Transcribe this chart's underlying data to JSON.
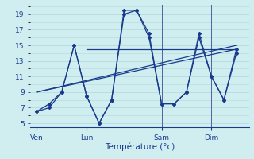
{
  "background_color": "#d0eef0",
  "grid_color": "#b0d8dc",
  "line_color": "#1a3a8c",
  "xlabel": "Température (°c)",
  "yticks": [
    5,
    7,
    9,
    11,
    13,
    15,
    17,
    19
  ],
  "ylim": [
    4.5,
    20.2
  ],
  "day_labels": [
    "Ven",
    "Lun",
    "Sam",
    "Dim"
  ],
  "day_positions": [
    0,
    8,
    20,
    28
  ],
  "xlim": [
    -1,
    34
  ],
  "zigzag1_x": [
    0,
    2,
    4,
    6,
    8,
    10,
    12,
    14,
    16,
    18,
    20,
    22,
    24,
    26,
    28,
    30,
    32
  ],
  "zigzag1_y": [
    6.5,
    7.0,
    9.0,
    15.0,
    8.5,
    5.0,
    8.0,
    19.5,
    19.5,
    16.5,
    7.5,
    7.5,
    9.0,
    16.0,
    11.0,
    8.0,
    14.0
  ],
  "zigzag2_x": [
    0,
    2,
    4,
    6,
    8,
    10,
    12,
    14,
    16,
    18,
    20,
    22,
    24,
    26,
    28,
    30,
    32
  ],
  "zigzag2_y": [
    6.5,
    7.5,
    9.0,
    15.0,
    8.5,
    5.0,
    8.0,
    19.0,
    19.5,
    16.0,
    7.5,
    7.5,
    9.0,
    16.5,
    11.0,
    8.0,
    14.5
  ],
  "trend1_x": [
    0,
    32
  ],
  "trend1_y": [
    9.0,
    14.5
  ],
  "trend2_x": [
    0,
    32
  ],
  "trend2_y": [
    9.0,
    15.0
  ],
  "hline_y": 14.5,
  "hline_x": [
    8,
    32
  ]
}
